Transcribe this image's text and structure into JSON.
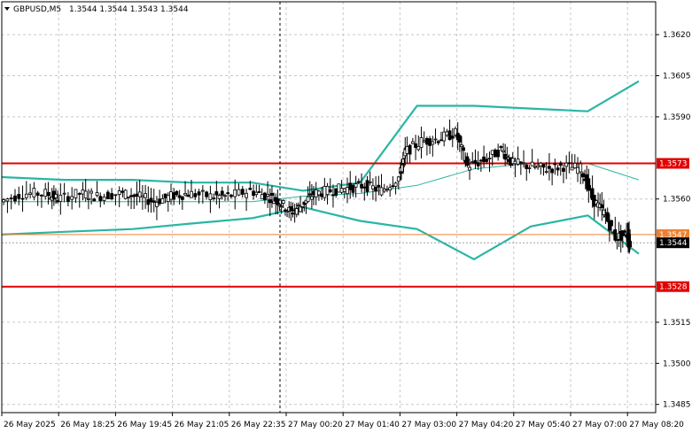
{
  "header": {
    "symbol": "GBPUSD,M5",
    "ohlc": "1.3544 1.3544 1.3543 1.3544"
  },
  "chart_data": {
    "type": "candlestick",
    "symbol": "GBPUSD",
    "timeframe": "M5",
    "ylim": [
      1.3482,
      1.3632
    ],
    "y_ticks": [
      "1.3620",
      "1.3605",
      "1.3590",
      "1.3560",
      "1.3515",
      "1.3500",
      "1.3485"
    ],
    "x_ticks": [
      "26 May 2025",
      "26 May 18:25",
      "26 May 19:45",
      "26 May 21:05",
      "26 May 22:35",
      "27 May 00:20",
      "27 May 01:40",
      "27 May 03:00",
      "27 May 04:20",
      "27 May 05:40",
      "27 May 07:00",
      "27 May 08:20"
    ],
    "grid": true,
    "session_separator_index": 5,
    "horizontal_levels": [
      {
        "label": "1.3573",
        "value": 1.3573,
        "color": "#e00000",
        "style": "thick"
      },
      {
        "label": "1.3547",
        "value": 1.3547,
        "color": "#f08030",
        "style": "thin"
      },
      {
        "label": "1.3544",
        "value": 1.3544,
        "color": "#a0a0a0",
        "style": "dotted"
      },
      {
        "label": "1.3528",
        "value": 1.3528,
        "color": "#e00000",
        "style": "thick"
      }
    ],
    "bollinger": {
      "color": "#2ab5a5",
      "x_ticks_index": [
        0,
        1.1,
        2.3,
        3.3,
        4.4,
        5.3,
        6.3,
        7.3,
        8.3,
        9.3,
        10.3,
        11.2
      ],
      "upper": [
        1.3568,
        1.3567,
        1.3567,
        1.3566,
        1.3566,
        1.3563,
        1.3566,
        1.3594,
        1.3594,
        1.3593,
        1.3592,
        1.3603
      ],
      "middle": [
        1.3559,
        1.3559,
        1.3559,
        1.3559,
        1.3559,
        1.3561,
        1.3562,
        1.3565,
        1.3571,
        1.3573,
        1.3573,
        1.3567
      ],
      "lower": [
        1.3547,
        1.3548,
        1.3549,
        1.3551,
        1.3553,
        1.3557,
        1.3552,
        1.3549,
        1.3538,
        1.355,
        1.3554,
        1.354
      ]
    },
    "price_path": [
      [
        0.0,
        1.3559
      ],
      [
        0.4,
        1.3562
      ],
      [
        0.8,
        1.3562
      ],
      [
        1.0,
        1.356
      ],
      [
        1.4,
        1.3562
      ],
      [
        1.7,
        1.3561
      ],
      [
        2.1,
        1.3562
      ],
      [
        2.4,
        1.3561
      ],
      [
        2.7,
        1.3559
      ],
      [
        3.0,
        1.3561
      ],
      [
        3.3,
        1.3562
      ],
      [
        3.7,
        1.3561
      ],
      [
        4.0,
        1.3561
      ],
      [
        4.4,
        1.3563
      ],
      [
        4.7,
        1.3561
      ],
      [
        4.9,
        1.3559
      ],
      [
        5.1,
        1.3555
      ],
      [
        5.3,
        1.3558
      ],
      [
        5.5,
        1.3562
      ],
      [
        5.8,
        1.3563
      ],
      [
        6.1,
        1.3564
      ],
      [
        6.4,
        1.3565
      ],
      [
        6.7,
        1.3563
      ],
      [
        7.0,
        1.3568
      ],
      [
        7.1,
        1.3577
      ],
      [
        7.4,
        1.3581
      ],
      [
        7.7,
        1.3582
      ],
      [
        8.0,
        1.3584
      ],
      [
        8.2,
        1.3572
      ],
      [
        8.5,
        1.3574
      ],
      [
        8.8,
        1.3578
      ],
      [
        9.0,
        1.3573
      ],
      [
        9.3,
        1.3572
      ],
      [
        9.6,
        1.3571
      ],
      [
        9.9,
        1.3572
      ],
      [
        10.2,
        1.3571
      ],
      [
        10.4,
        1.356
      ],
      [
        10.6,
        1.3555
      ],
      [
        10.8,
        1.3546
      ],
      [
        11.0,
        1.3547
      ],
      [
        11.05,
        1.3544
      ]
    ]
  }
}
